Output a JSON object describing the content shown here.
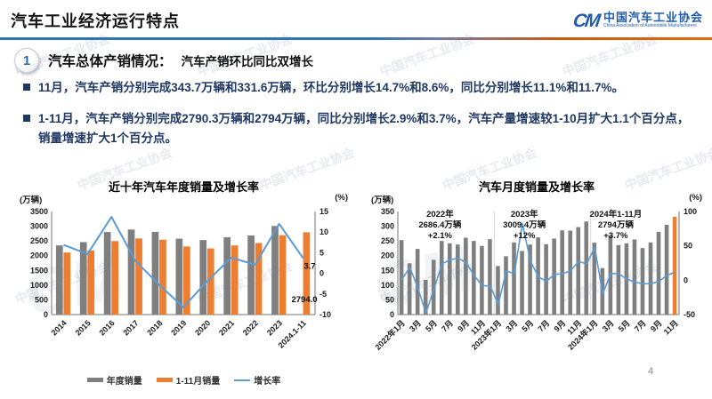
{
  "header": {
    "title": "汽车工业经济运行特点",
    "logo": {
      "mark": "CM",
      "org_cn": "中国汽车工业协会",
      "org_en": "China Association of Automobile Manufacturers"
    }
  },
  "section": {
    "number": "1",
    "title": "汽车总体产销情况：",
    "subtitle": "汽车产销环比同比双增长"
  },
  "bullets": [
    "11月，汽车产销分别完成343.7万辆和331.6万辆，环比分别增长14.7%和8.6%，同比分别增长11.1%和11.7%。",
    "1-11月，汽车产销分别完成2790.3万辆和2794万辆，同比分别增长2.9%和3.7%，汽车产量增速较1-10月扩大1.1个百分点，销量增速扩大1个百分点。"
  ],
  "page_number": "4",
  "watermark": {
    "text": "中国汽车工业协会",
    "mark": "CM"
  },
  "colors": {
    "bar_gray": "#7F7F7F",
    "bar_orange": "#ED7D31",
    "line_blue": "#5B9BD5",
    "text_navy": "#1F3864",
    "logo_blue": "#1F5CA9",
    "divider_blue": "#2E75B6",
    "divider_orange": "#E36C0A"
  },
  "chart_data": [
    {
      "type": "bar+line",
      "title": "近十年汽车年度销量及增长率",
      "left_axis_unit": "(万辆)",
      "right_axis_unit": "(%)",
      "categories": [
        "2014",
        "2015",
        "2016",
        "2017",
        "2018",
        "2019",
        "2020",
        "2021",
        "2022",
        "2023",
        "2024.1-11"
      ],
      "series": [
        {
          "key": "annual-sales",
          "name": "年度销量",
          "type": "bar",
          "color": "#7F7F7F",
          "values": [
            2349,
            2460,
            2803,
            2888,
            2808,
            2577,
            2531,
            2628,
            2686,
            3009,
            null
          ]
        },
        {
          "key": "jan-nov-sales",
          "name": "1-11月销量",
          "type": "bar",
          "color": "#ED7D31",
          "values": [
            2108,
            2179,
            2495,
            2585,
            2542,
            2311,
            2247,
            2349,
            2430,
            2694,
            2794
          ]
        },
        {
          "key": "growth-rate",
          "name": "增长率",
          "type": "line",
          "color": "#5B9BD5",
          "values": [
            6.9,
            4.7,
            13.7,
            3.0,
            -2.8,
            -8.2,
            -1.9,
            3.8,
            2.1,
            12.0,
            3.7
          ]
        }
      ],
      "left_axis": {
        "min": 0,
        "max": 3500,
        "step": 500
      },
      "right_axis": {
        "min": -10,
        "max": 15,
        "step": 5
      },
      "point_labels": [
        {
          "text": "3.7",
          "at": "line-end"
        },
        {
          "text": "2794.0",
          "at": "bar-base"
        }
      ],
      "legend_position": "bottom",
      "grid": false
    },
    {
      "type": "bar+line",
      "title": "汽车月度销量及增长率",
      "left_axis_unit": "(万辆)",
      "right_axis_unit": "(%)",
      "x_tick_labels": [
        "2022年1月",
        "3月",
        "5月",
        "7月",
        "9月",
        "11月",
        "2023年1月",
        "3月",
        "5月",
        "7月",
        "9月",
        "11月",
        "2024年1月",
        "3月",
        "5月",
        "7月",
        "9月",
        "11月"
      ],
      "series": [
        {
          "key": "monthly-sales",
          "name": "月度销量",
          "type": "bar",
          "color": "#7F7F7F",
          "highlight_last_color": "#ED7D31",
          "values": [
            253,
            174,
            223,
            118,
            186,
            250,
            242,
            238,
            261,
            250,
            233,
            256,
            165,
            198,
            245,
            216,
            238,
            262,
            239,
            258,
            286,
            285,
            297,
            316,
            244,
            158,
            269,
            236,
            242,
            255,
            226,
            245,
            281,
            305,
            332
          ]
        },
        {
          "key": "monthly-growth-rate",
          "name": "增长率",
          "type": "line",
          "color": "#5B9BD5",
          "values": [
            0.9,
            18.7,
            -11.7,
            -47.6,
            -12.6,
            23.8,
            29.7,
            32.1,
            25.7,
            6.9,
            -7.9,
            -8.4,
            -35.0,
            13.5,
            9.7,
            82.7,
            27.9,
            4.8,
            -1.4,
            8.4,
            9.5,
            13.8,
            27.4,
            23.5,
            47.9,
            -19.9,
            9.9,
            9.3,
            1.5,
            -2.7,
            -5.2,
            -5.0,
            -1.7,
            7.0,
            11.7
          ]
        }
      ],
      "left_axis": {
        "min": 0,
        "max": 350,
        "step": 50
      },
      "right_axis": {
        "min": -50,
        "max": 100,
        "step": 50
      },
      "annotations": [
        {
          "lines": [
            "2022年",
            "2686.4万辆",
            "+2.1%"
          ]
        },
        {
          "lines": [
            "2023年",
            "3009.4万辆",
            "+12%"
          ]
        },
        {
          "lines": [
            "2024年1-11月",
            "2794万辆",
            "+3.7%"
          ]
        }
      ],
      "grid": false
    }
  ]
}
